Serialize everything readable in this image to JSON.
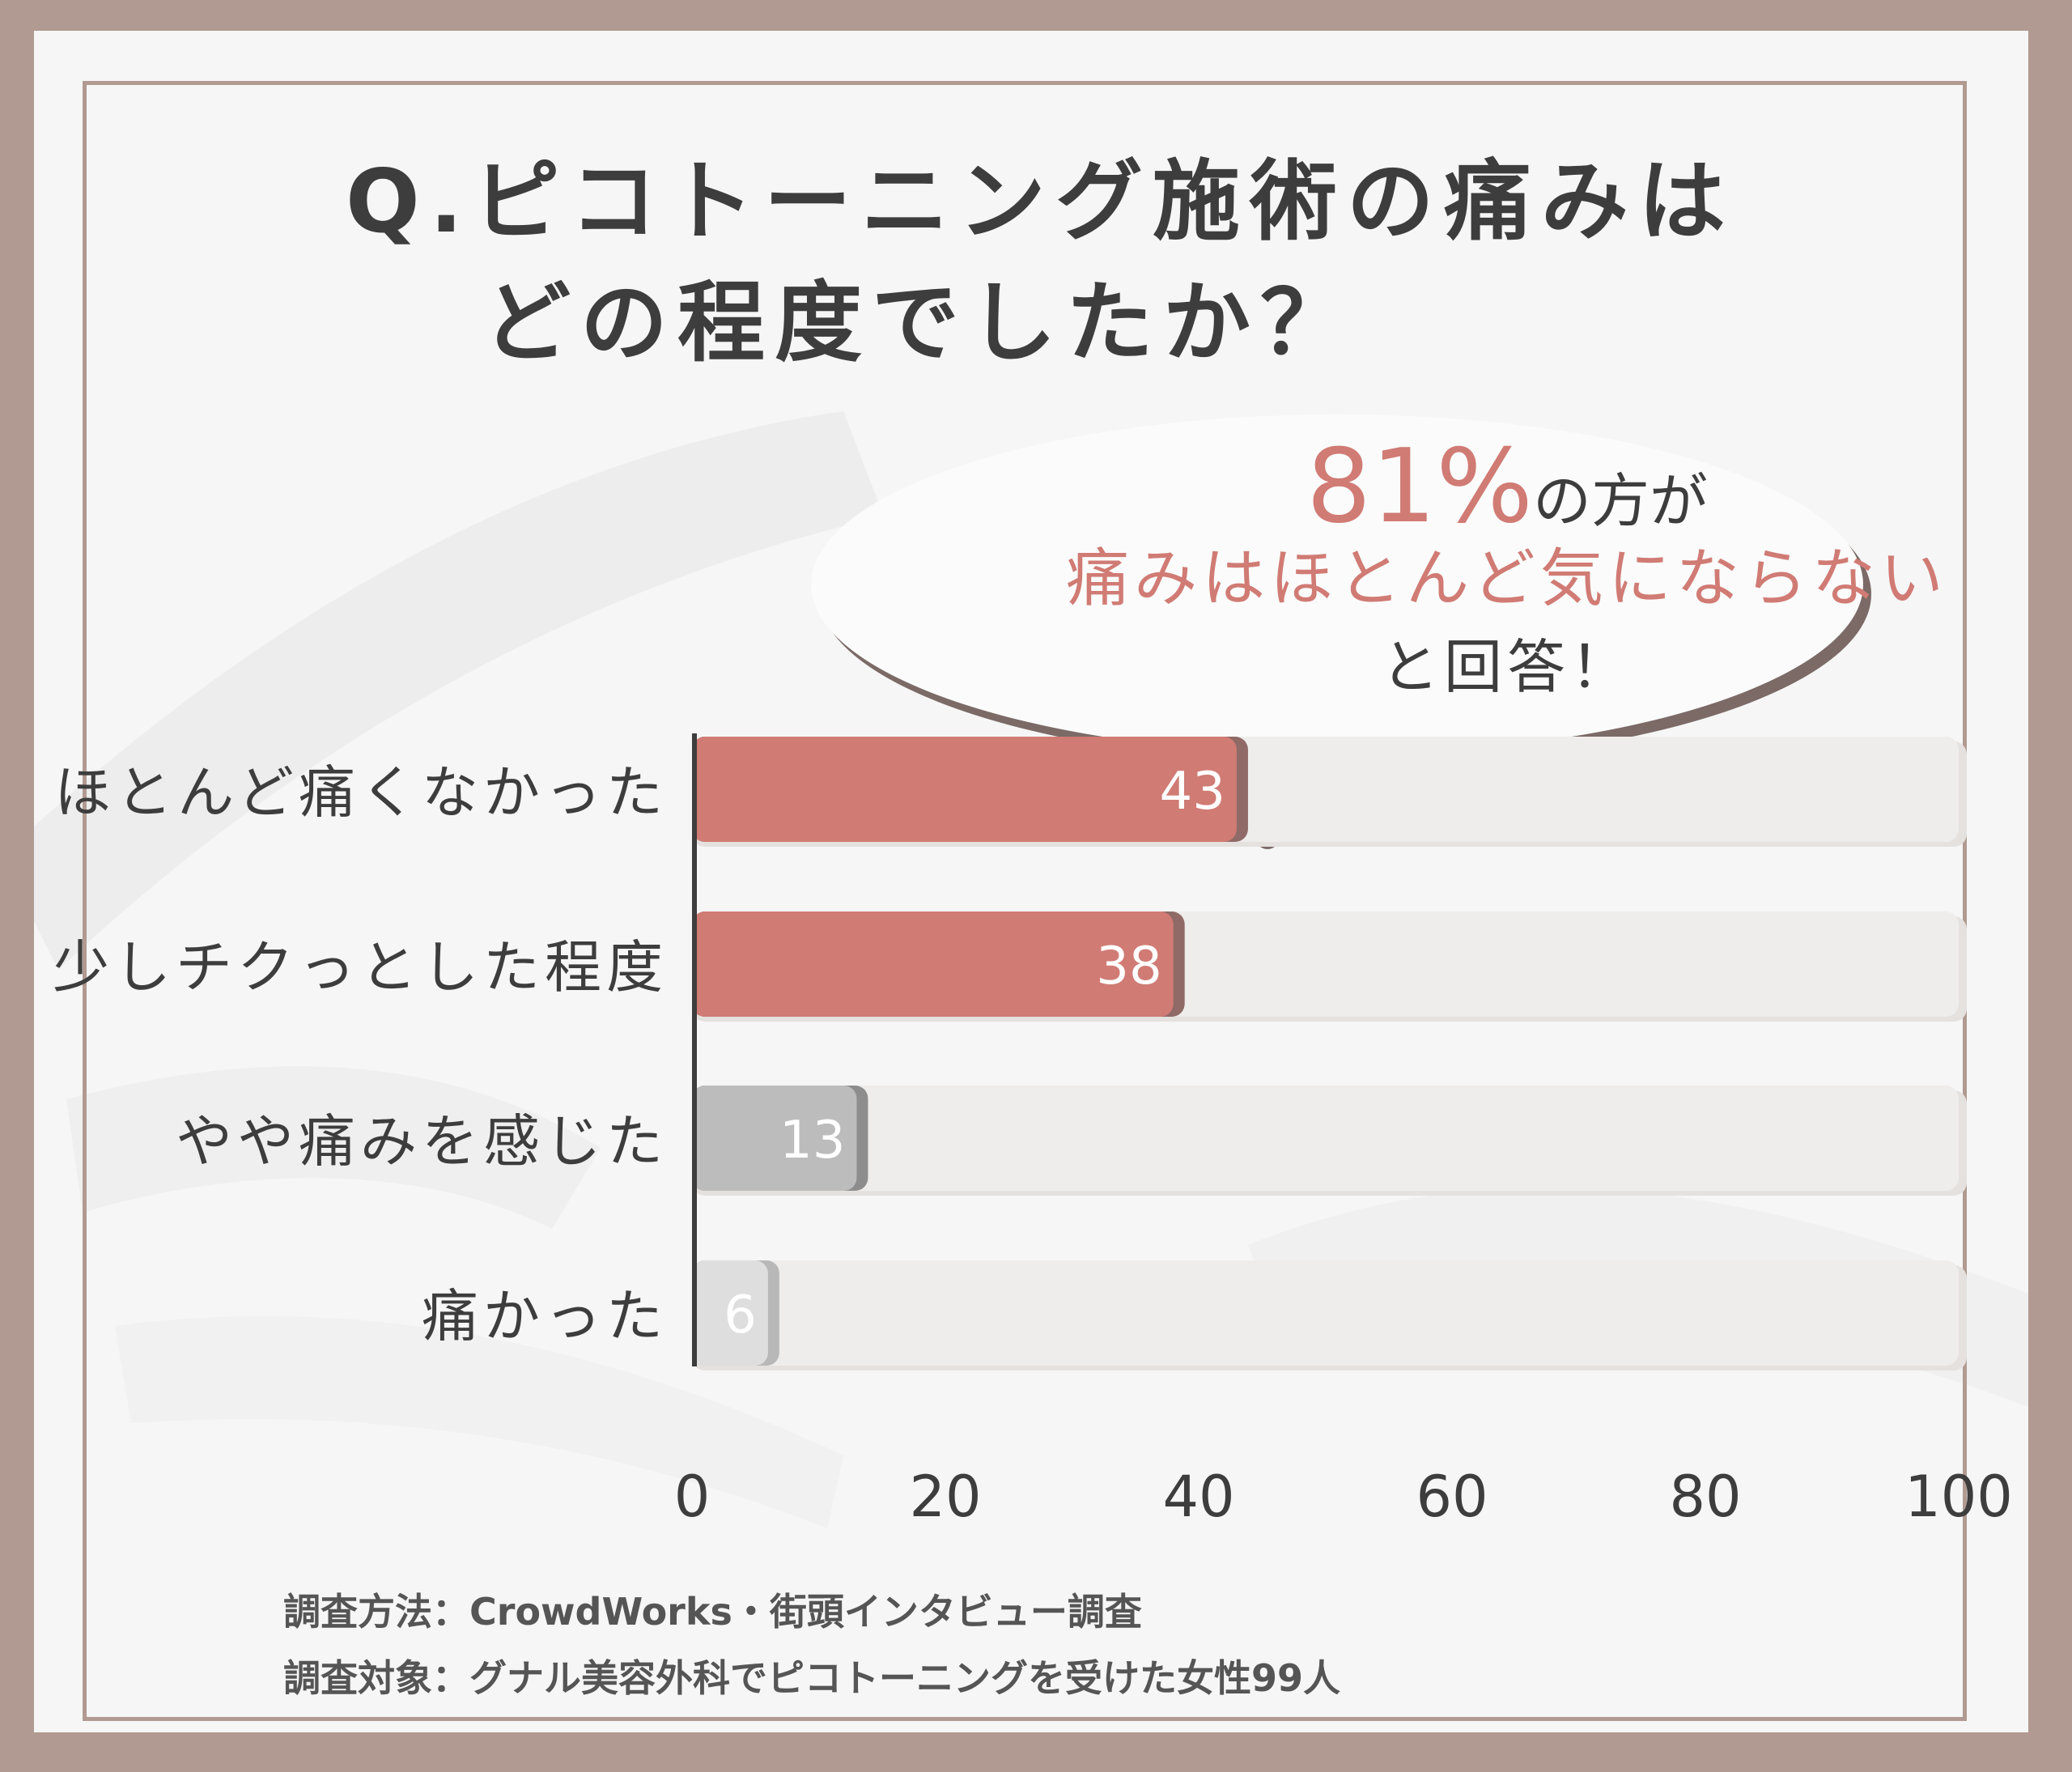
{
  "title": {
    "line1": "Q.ピコトーニング施術の痛みは",
    "line2": "どの程度でしたか？"
  },
  "callout": {
    "percent": "81%",
    "suffix": "の方が",
    "highlight": "痛みはほとんど気にならない",
    "tail": "と回答！"
  },
  "chart_data": {
    "type": "bar",
    "orientation": "horizontal",
    "categories": [
      "ほとんど痛くなかった",
      "少しチクっとした程度",
      "やや痛みを感じた",
      "痛かった"
    ],
    "values": [
      43,
      38,
      13,
      6
    ],
    "xlim": [
      0,
      100
    ],
    "x_ticks": [
      "0",
      "20",
      "40",
      "60",
      "80",
      "100"
    ],
    "grid": false
  },
  "colors": {
    "accent": "#d07b74",
    "accent_shadow": "#8f6a66",
    "muted": "#bcbcbc",
    "muted_shadow": "#8d8d8d",
    "light": "#dedede",
    "track": "#efedec",
    "text": "#3d3d3d",
    "frame": "#b19a91"
  },
  "footer": {
    "method": "調査方法：CrowdWorks・街頭インタビュー調査",
    "target": "調査対象：グナル美容外科でピコトーニングを受けた女性99人"
  }
}
